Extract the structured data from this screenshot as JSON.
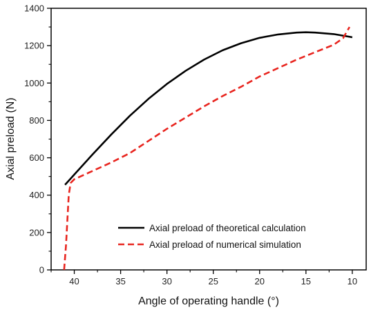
{
  "chart_data": {
    "type": "line",
    "title": "",
    "xlabel": "Angle of operating handle (°)",
    "ylabel": "Axial preload (N)",
    "xlim": [
      42.5,
      8.5
    ],
    "ylim": [
      0,
      1400
    ],
    "x_reversed": true,
    "xticks": [
      40,
      35,
      30,
      25,
      20,
      15,
      10
    ],
    "xtick_labels": [
      "40",
      "35",
      "30",
      "25",
      "20",
      "15",
      "10"
    ],
    "yticks": [
      0,
      200,
      400,
      600,
      800,
      1000,
      1200,
      1400
    ],
    "ytick_labels": [
      "0",
      "200",
      "400",
      "600",
      "800",
      "1000",
      "1200",
      "1400"
    ],
    "grid": false,
    "legend_position": "bottom-right",
    "series": [
      {
        "name": "Axial preload of theoretical calculation",
        "color": "#000000",
        "line_style": "solid",
        "x": [
          41,
          40,
          38,
          36,
          35,
          34,
          32,
          30,
          28,
          26,
          24,
          22,
          20,
          18,
          16,
          15,
          14,
          12,
          10
        ],
        "y": [
          455,
          510,
          620,
          725,
          775,
          825,
          915,
          995,
          1065,
          1125,
          1175,
          1213,
          1242,
          1260,
          1270,
          1272,
          1270,
          1262,
          1245
        ]
      },
      {
        "name": "Axial preload of numerical simulation",
        "color": "#e8241e",
        "line_style": "dashed",
        "x": [
          41.1,
          40.9,
          40.6,
          40.4,
          40,
          38,
          36,
          34,
          32,
          30,
          28,
          26,
          24,
          22,
          20,
          18,
          16,
          14,
          12,
          11,
          10.3
        ],
        "y": [
          0,
          130,
          400,
          465,
          485,
          530,
          575,
          625,
          690,
          755,
          815,
          875,
          930,
          980,
          1035,
          1080,
          1125,
          1165,
          1205,
          1240,
          1300
        ]
      }
    ]
  }
}
